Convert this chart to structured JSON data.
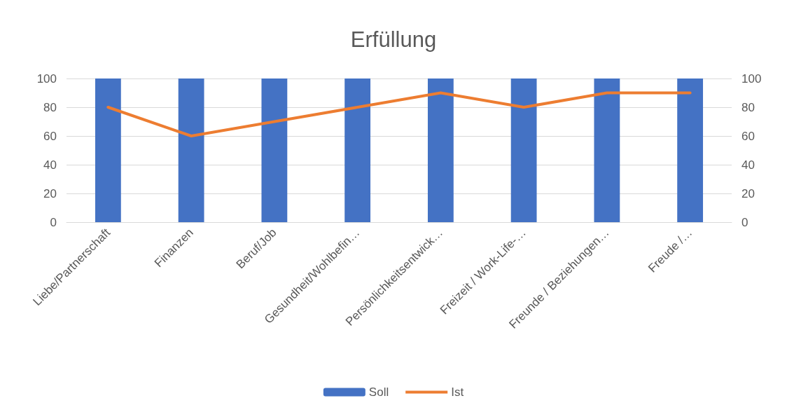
{
  "chart_data": {
    "type": "bar",
    "title": "Erfüllung",
    "categories": [
      "Liebe/Partnerschaft",
      "Finanzen",
      "Beruf/Job",
      "Gesundheit/Wohlbefin…",
      "Persönlichkeitsentwick…",
      "Freizeit / Work-Life-…",
      "Freunde / Beziehungen…",
      "Freude /…"
    ],
    "series": [
      {
        "name": "Soll",
        "color": "#4472c4",
        "values": [
          100,
          100,
          100,
          100,
          100,
          100,
          100,
          100
        ]
      },
      {
        "name": "Ist",
        "type": "line",
        "axis": "y2",
        "color": "#ed7d31",
        "values": [
          80,
          60,
          70,
          80,
          90,
          80,
          90,
          90
        ]
      }
    ],
    "ylim": [
      0,
      100
    ],
    "yticks": [
      0,
      20,
      40,
      60,
      80,
      100
    ],
    "y2lim": [
      0,
      100
    ],
    "y2ticks": [
      0,
      20,
      40,
      60,
      80,
      100
    ],
    "grid": "y",
    "legend": "bottom"
  }
}
